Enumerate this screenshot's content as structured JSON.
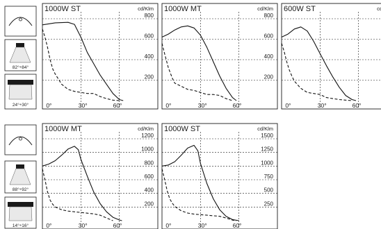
{
  "unit_label": "cd/Klm",
  "icon_names": [
    "luminaire-beam-icon",
    "lamp-wide-icon",
    "lamp-narrow-icon"
  ],
  "beam_icons": {
    "row1": {
      "wide_angle": "82°÷84°",
      "narrow_angle": "24°÷30°"
    },
    "row2": {
      "wide_angle": "88°÷92°",
      "narrow_angle": "14°÷16°"
    }
  },
  "chart_data": [
    {
      "type": "line",
      "title": "1000W ST",
      "unit": "cd/Klm",
      "x_ticks": [
        "0°",
        "30°",
        "60°"
      ],
      "y_ticks": [
        200,
        400,
        600,
        800
      ],
      "ylim": [
        0,
        800
      ],
      "xlim": [
        0,
        90
      ],
      "grid": true,
      "series": [
        {
          "style": "solid",
          "x": [
            0,
            10,
            20,
            25,
            30,
            35,
            40,
            45,
            50,
            55,
            60,
            63
          ],
          "y": [
            740,
            760,
            765,
            745,
            620,
            470,
            360,
            250,
            160,
            70,
            10,
            0
          ]
        },
        {
          "style": "dashed",
          "x": [
            0,
            2,
            4,
            6,
            8,
            10,
            15,
            20,
            25,
            30,
            35,
            40,
            45,
            50,
            55,
            60
          ],
          "y": [
            700,
            620,
            520,
            400,
            310,
            260,
            160,
            110,
            90,
            80,
            70,
            70,
            40,
            20,
            5,
            0
          ]
        }
      ]
    },
    {
      "type": "line",
      "title": "1000W MT",
      "unit": "cd/Klm",
      "x_ticks": [
        "0°",
        "30°",
        "60°"
      ],
      "y_ticks": [
        200,
        400,
        600,
        800
      ],
      "ylim": [
        0,
        800
      ],
      "xlim": [
        0,
        90
      ],
      "grid": true,
      "series": [
        {
          "style": "solid",
          "x": [
            0,
            5,
            10,
            15,
            20,
            25,
            30,
            35,
            40,
            45,
            50,
            55,
            58
          ],
          "y": [
            620,
            650,
            690,
            720,
            730,
            710,
            640,
            520,
            380,
            240,
            120,
            30,
            0
          ]
        },
        {
          "style": "dashed",
          "x": [
            0,
            2,
            5,
            8,
            10,
            15,
            20,
            25,
            30,
            35,
            40,
            45,
            50,
            55
          ],
          "y": [
            560,
            460,
            320,
            220,
            170,
            140,
            110,
            100,
            80,
            60,
            60,
            50,
            20,
            0
          ]
        }
      ]
    },
    {
      "type": "line",
      "title": "600W ST",
      "unit": "cd/Klm",
      "x_ticks": [
        "0°",
        "30°",
        "60°"
      ],
      "y_ticks": [
        200,
        400,
        600,
        800
      ],
      "ylim": [
        0,
        800
      ],
      "xlim": [
        0,
        90
      ],
      "grid": true,
      "series": [
        {
          "style": "solid",
          "x": [
            0,
            5,
            10,
            15,
            20,
            25,
            30,
            35,
            40,
            45,
            50,
            55,
            58
          ],
          "y": [
            620,
            650,
            700,
            720,
            680,
            580,
            460,
            340,
            230,
            130,
            50,
            10,
            0
          ]
        },
        {
          "style": "dashed",
          "x": [
            0,
            2,
            4,
            6,
            8,
            10,
            15,
            20,
            25,
            30,
            35,
            40,
            45,
            50,
            55
          ],
          "y": [
            560,
            480,
            380,
            300,
            240,
            190,
            120,
            80,
            70,
            60,
            30,
            20,
            10,
            5,
            0
          ]
        }
      ]
    },
    {
      "type": "line",
      "title": "1000W MT",
      "unit": "cd/Klm",
      "x_ticks": [
        "0°",
        "30°",
        "60°"
      ],
      "y_ticks": [
        200,
        400,
        600,
        800,
        1000,
        1200
      ],
      "ylim": [
        0,
        1200
      ],
      "xlim": [
        0,
        90
      ],
      "grid": true,
      "series": [
        {
          "style": "solid",
          "x": [
            0,
            5,
            10,
            15,
            20,
            25,
            28,
            30,
            35,
            40,
            45,
            50,
            55,
            60,
            62
          ],
          "y": [
            800,
            830,
            880,
            960,
            1050,
            1090,
            1040,
            900,
            650,
            420,
            250,
            130,
            50,
            10,
            0
          ]
        },
        {
          "style": "dashed",
          "x": [
            0,
            2,
            4,
            6,
            8,
            10,
            15,
            20,
            25,
            30,
            35,
            40,
            45,
            50,
            55
          ],
          "y": [
            760,
            600,
            420,
            300,
            240,
            200,
            160,
            140,
            130,
            120,
            110,
            100,
            80,
            40,
            0
          ]
        }
      ]
    },
    {
      "type": "line",
      "title": "1000W ST",
      "unit": "cd/Klm",
      "x_ticks": [
        "0°",
        "30°",
        "60°"
      ],
      "y_ticks": [
        250,
        500,
        750,
        1000,
        1250,
        1500
      ],
      "ylim": [
        0,
        1500
      ],
      "xlim": [
        0,
        90
      ],
      "grid": true,
      "series": [
        {
          "style": "solid",
          "x": [
            0,
            5,
            10,
            15,
            20,
            25,
            28,
            30,
            35,
            40,
            45,
            50,
            55,
            60
          ],
          "y": [
            1000,
            1020,
            1080,
            1200,
            1330,
            1380,
            1280,
            1050,
            680,
            400,
            200,
            80,
            20,
            0
          ]
        },
        {
          "style": "dashed",
          "x": [
            0,
            2,
            4,
            6,
            8,
            10,
            15,
            20,
            25,
            30,
            35,
            40,
            45,
            50,
            55,
            58
          ],
          "y": [
            950,
            760,
            550,
            400,
            320,
            260,
            180,
            140,
            120,
            110,
            100,
            90,
            80,
            50,
            10,
            0
          ]
        }
      ]
    }
  ]
}
